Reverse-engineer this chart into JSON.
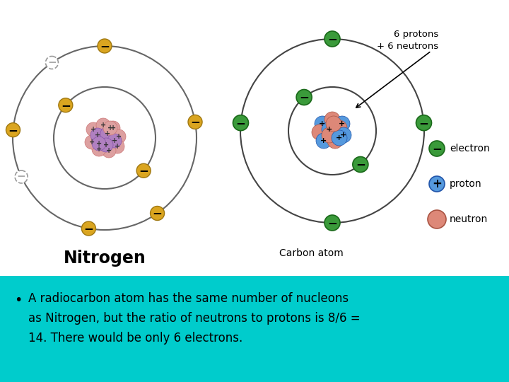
{
  "bg_color": "#00CCCC",
  "text_bullet": "A radiocarbon atom has the same number of nucleons\nas Nitrogen, but the ratio of neutrons to protons is 8/6 =\n14. There would be only 6 electrons.",
  "nitrogen_label": "Nitrogen",
  "carbon_label": "Carbon atom",
  "right_annotation": "6 protons\n+ 6 neutrons",
  "electron_label": "electron",
  "proton_label": "proton",
  "neutron_label": "neutron",
  "electron_color": "#3A9A3A",
  "electron_edge": "#1A6A1A",
  "proton_color": "#5599DD",
  "proton_edge": "#2255AA",
  "neutron_color": "#DD8878",
  "neutron_edge": "#AA5544",
  "gold_color": "#DAA520",
  "gold_edge": "#A07810",
  "nucleus_pink": "#DDA0A0",
  "nucleus_purple": "#B080C0",
  "nucleus_pink_edge": "#CC7777",
  "nucleus_purple_edge": "#8855AA"
}
